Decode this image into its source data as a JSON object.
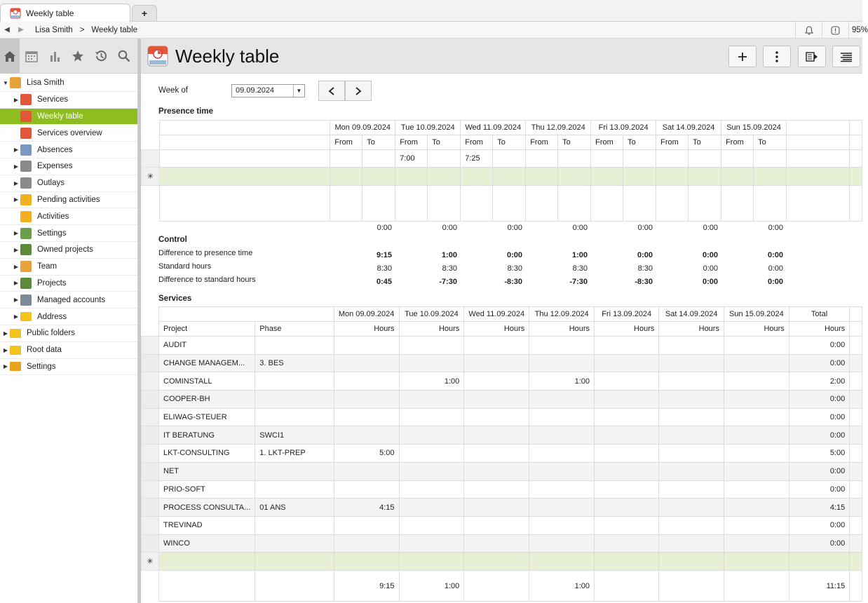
{
  "tab": {
    "title": "Weekly table",
    "add": "+"
  },
  "breadcrumb": {
    "user": "Lisa Smith",
    "sep": ">",
    "page": "Weekly table",
    "zoom": "95%"
  },
  "sidebar": {
    "items": [
      {
        "label": "Lisa Smith",
        "level": 0,
        "arrow": "down",
        "icon": "user-icon",
        "color": "#e8a23a"
      },
      {
        "label": "Services",
        "level": 1,
        "arrow": "right",
        "icon": "services-icon",
        "color": "#e2573a"
      },
      {
        "label": "Weekly table",
        "level": 1,
        "arrow": "",
        "icon": "weekly-table-icon",
        "color": "#e2573a",
        "selected": true
      },
      {
        "label": "Services overview",
        "level": 1,
        "arrow": "",
        "icon": "services-overview-icon",
        "color": "#e2573a"
      },
      {
        "label": "Absences",
        "level": 1,
        "arrow": "right",
        "icon": "absences-icon",
        "color": "#7a98c4"
      },
      {
        "label": "Expenses",
        "level": 1,
        "arrow": "right",
        "icon": "expenses-icon",
        "color": "#8a8a8a"
      },
      {
        "label": "Outlays",
        "level": 1,
        "arrow": "right",
        "icon": "outlays-icon",
        "color": "#8a8a8a"
      },
      {
        "label": "Pending activities",
        "level": 1,
        "arrow": "right",
        "icon": "pending-activities-icon",
        "color": "#f2b01e"
      },
      {
        "label": "Activities",
        "level": 1,
        "arrow": "",
        "icon": "activities-icon",
        "color": "#f2b01e"
      },
      {
        "label": "Settings",
        "level": 1,
        "arrow": "right",
        "icon": "user-settings-icon",
        "color": "#6aa04a"
      },
      {
        "label": "Owned projects",
        "level": 1,
        "arrow": "right",
        "icon": "owned-projects-icon",
        "color": "#5a8a3a"
      },
      {
        "label": "Team",
        "level": 1,
        "arrow": "right",
        "icon": "team-icon",
        "color": "#e8a23a"
      },
      {
        "label": "Projects",
        "level": 1,
        "arrow": "right",
        "icon": "projects-icon",
        "color": "#5a8a3a"
      },
      {
        "label": "Managed accounts",
        "level": 1,
        "arrow": "right",
        "icon": "managed-accounts-icon",
        "color": "#7a8a9a"
      },
      {
        "label": "Address",
        "level": 1,
        "arrow": "right",
        "icon": "address-folder-icon",
        "color": "#f2c21e"
      },
      {
        "label": "Public folders",
        "level": 0,
        "arrow": "right",
        "icon": "public-folder-icon",
        "color": "#f2c21e"
      },
      {
        "label": "Root data",
        "level": 0,
        "arrow": "right",
        "icon": "root-data-folder-icon",
        "color": "#f2c21e"
      },
      {
        "label": "Settings",
        "level": 0,
        "arrow": "right",
        "icon": "settings-folder-icon",
        "color": "#e8a21e"
      }
    ]
  },
  "header": {
    "title": "Weekly table"
  },
  "week": {
    "label": "Week of",
    "value": "09.09.2024"
  },
  "presence": {
    "title": "Presence time",
    "days": [
      "Mon 09.09.2024",
      "Tue 10.09.2024",
      "Wed 11.09.2024",
      "Thu 12.09.2024",
      "Fri 13.09.2024",
      "Sat 14.09.2024",
      "Sun 15.09.2024"
    ],
    "from_label": "From",
    "to_label": "To",
    "row1": [
      "",
      "",
      "7:00",
      "",
      "7:25",
      "",
      "",
      "",
      "",
      "",
      "",
      "",
      "",
      ""
    ],
    "new_row_marker": "✳",
    "totals": [
      "0:00",
      "0:00",
      "0:00",
      "0:00",
      "0:00",
      "0:00",
      "0:00"
    ]
  },
  "control": {
    "title": "Control",
    "rows": [
      {
        "label": "Difference to presence time",
        "values": [
          "9:15",
          "1:00",
          "0:00",
          "1:00",
          "0:00",
          "0:00",
          "0:00"
        ],
        "bold": true
      },
      {
        "label": "Standard hours",
        "values": [
          "8:30",
          "8:30",
          "8:30",
          "8:30",
          "8:30",
          "0:00",
          "0:00"
        ],
        "bold": false
      },
      {
        "label": "Difference to standard hours",
        "values": [
          "0:45",
          "-7:30",
          "-8:30",
          "-7:30",
          "-8:30",
          "0:00",
          "0:00"
        ],
        "bold": true
      }
    ]
  },
  "services": {
    "title": "Services",
    "days": [
      "Mon 09.09.2024",
      "Tue 10.09.2024",
      "Wed 11.09.2024",
      "Thu 12.09.2024",
      "Fri 13.09.2024",
      "Sat 14.09.2024",
      "Sun 15.09.2024"
    ],
    "total_label": "Total",
    "project_label": "Project",
    "phase_label": "Phase",
    "hours_label": "Hours",
    "rows": [
      {
        "project": "AUDIT",
        "phase": "",
        "hours": [
          "",
          "",
          "",
          "",
          "",
          "",
          ""
        ],
        "total": "0:00"
      },
      {
        "project": "CHANGE MANAGEM...",
        "phase": "3. BES",
        "hours": [
          "",
          "",
          "",
          "",
          "",
          "",
          ""
        ],
        "total": "0:00"
      },
      {
        "project": "COMINSTALL",
        "phase": "",
        "hours": [
          "",
          "1:00",
          "",
          "1:00",
          "",
          "",
          ""
        ],
        "total": "2:00"
      },
      {
        "project": "COOPER-BH",
        "phase": "",
        "hours": [
          "",
          "",
          "",
          "",
          "",
          "",
          ""
        ],
        "total": "0:00"
      },
      {
        "project": "ELIWAG-STEUER",
        "phase": "",
        "hours": [
          "",
          "",
          "",
          "",
          "",
          "",
          ""
        ],
        "total": "0:00"
      },
      {
        "project": "IT BERATUNG",
        "phase": "SWCI1",
        "hours": [
          "",
          "",
          "",
          "",
          "",
          "",
          ""
        ],
        "total": "0:00"
      },
      {
        "project": "LKT-CONSULTING",
        "phase": "1. LKT-PREP",
        "hours": [
          "5:00",
          "",
          "",
          "",
          "",
          "",
          ""
        ],
        "total": "5:00"
      },
      {
        "project": "NET",
        "phase": "",
        "hours": [
          "",
          "",
          "",
          "",
          "",
          "",
          ""
        ],
        "total": "0:00"
      },
      {
        "project": "PRIO-SOFT",
        "phase": "",
        "hours": [
          "",
          "",
          "",
          "",
          "",
          "",
          ""
        ],
        "total": "0:00"
      },
      {
        "project": "PROCESS CONSULTA...",
        "phase": "01 ANS",
        "hours": [
          "4:15",
          "",
          "",
          "",
          "",
          "",
          ""
        ],
        "total": "4:15"
      },
      {
        "project": "TREVINAD",
        "phase": "",
        "hours": [
          "",
          "",
          "",
          "",
          "",
          "",
          ""
        ],
        "total": "0:00"
      },
      {
        "project": "WINCO",
        "phase": "",
        "hours": [
          "",
          "",
          "",
          "",
          "",
          "",
          ""
        ],
        "total": "0:00"
      }
    ],
    "sums": [
      "9:15",
      "1:00",
      "",
      "1:00",
      "",
      "",
      ""
    ],
    "sum_total": "11:15"
  }
}
